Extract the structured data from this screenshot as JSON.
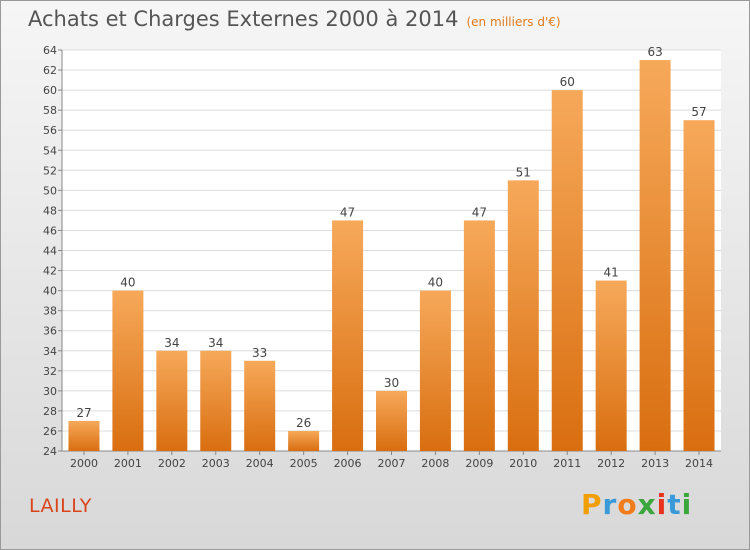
{
  "header": {
    "title": "Achats et Charges Externes 2000 à 2014",
    "unit": "(en milliers d'€)"
  },
  "footer": {
    "commune": "LAILLY",
    "logo": "Proxiti"
  },
  "colors": {
    "bar_light": "#f6a95a",
    "bar_dark": "#d96e10",
    "commune_text": "#d9441b",
    "subtitle_text": "#e07a1b"
  },
  "chart_data": {
    "type": "bar",
    "title": "Achats et Charges Externes 2000 à 2014",
    "subtitle": "(en milliers d'€)",
    "categories": [
      "2000",
      "2001",
      "2002",
      "2003",
      "2004",
      "2005",
      "2006",
      "2007",
      "2008",
      "2009",
      "2010",
      "2011",
      "2012",
      "2013",
      "2014"
    ],
    "values": [
      27,
      40,
      34,
      34,
      33,
      26,
      47,
      30,
      40,
      47,
      51,
      60,
      41,
      63,
      57
    ],
    "ylim": [
      24,
      64
    ],
    "yticks": [
      24,
      26,
      28,
      30,
      32,
      34,
      36,
      38,
      40,
      42,
      44,
      46,
      48,
      50,
      52,
      54,
      56,
      58,
      60,
      62,
      64
    ],
    "grid": true,
    "data_labels": true
  }
}
